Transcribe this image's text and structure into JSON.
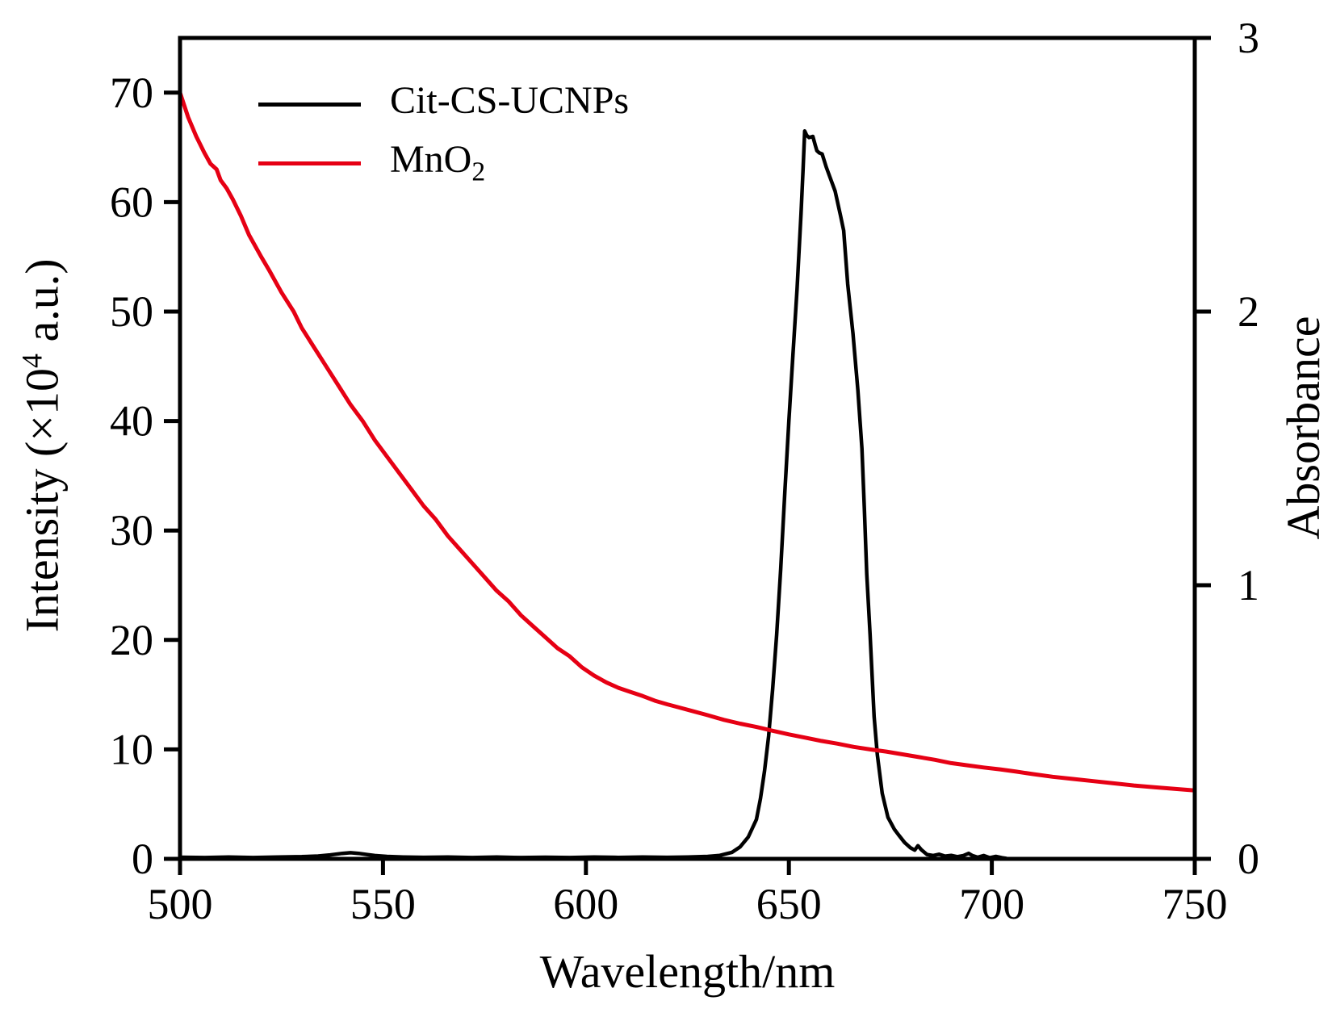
{
  "figure": {
    "background": "#ffffff"
  },
  "chart_data": {
    "type": "line",
    "title": "",
    "xlabel": "Wavelength/nm",
    "ylabel_left": "Intensity (×10⁴ a.u.)",
    "ylabel_right": "Absorbance",
    "xlim": [
      500,
      750
    ],
    "xticks": [
      500,
      550,
      600,
      650,
      700,
      750
    ],
    "ylim_left": [
      0,
      75
    ],
    "yticks_left": [
      0,
      10,
      20,
      30,
      40,
      50,
      60,
      70
    ],
    "ylim_right": [
      0,
      3
    ],
    "yticks_right": [
      0,
      1,
      2,
      3
    ],
    "grid": false,
    "legend_position": "upper-left-inside",
    "labels": {
      "ylabel_left_pre": "Intensity (×10",
      "ylabel_left_sup": "4",
      "ylabel_left_post": " a.u.)"
    },
    "legend": {
      "items": [
        {
          "label": "Cit-CS-UCNPs",
          "base": "Cit-CS-UCNPs",
          "sub": "",
          "color": "#000000"
        },
        {
          "label": "MnO2",
          "base": "MnO",
          "sub": "2",
          "color": "#e60014"
        }
      ]
    },
    "series": [
      {
        "id": "cit-cs-ucnps",
        "name": "Cit-CS-UCNPs",
        "axis": "left",
        "color": "#000000",
        "width": 4.5,
        "points": [
          [
            500,
            0.15
          ],
          [
            506,
            0.12
          ],
          [
            512,
            0.16
          ],
          [
            518,
            0.12
          ],
          [
            524,
            0.17
          ],
          [
            530,
            0.2
          ],
          [
            534,
            0.26
          ],
          [
            537,
            0.36
          ],
          [
            540,
            0.5
          ],
          [
            542,
            0.56
          ],
          [
            544,
            0.5
          ],
          [
            546,
            0.4
          ],
          [
            548,
            0.3
          ],
          [
            551,
            0.22
          ],
          [
            555,
            0.17
          ],
          [
            560,
            0.14
          ],
          [
            566,
            0.16
          ],
          [
            572,
            0.12
          ],
          [
            578,
            0.16
          ],
          [
            584,
            0.12
          ],
          [
            590,
            0.15
          ],
          [
            596,
            0.12
          ],
          [
            602,
            0.16
          ],
          [
            608,
            0.13
          ],
          [
            614,
            0.16
          ],
          [
            620,
            0.14
          ],
          [
            625,
            0.17
          ],
          [
            630,
            0.22
          ],
          [
            633,
            0.32
          ],
          [
            636,
            0.6
          ],
          [
            638,
            1.1
          ],
          [
            640,
            2.0
          ],
          [
            642,
            3.6
          ],
          [
            643,
            5.5
          ],
          [
            644,
            8.0
          ],
          [
            645,
            11.2
          ],
          [
            646,
            15.5
          ],
          [
            647,
            20.5
          ],
          [
            648,
            26.5
          ],
          [
            649,
            33.5
          ],
          [
            650,
            40.0
          ],
          [
            651,
            46.0
          ],
          [
            652,
            52.0
          ],
          [
            653,
            59.0
          ],
          [
            653.5,
            63.0
          ],
          [
            653.9,
            66.5
          ],
          [
            654.4,
            66.1
          ],
          [
            655.0,
            65.9
          ],
          [
            655.9,
            66.0
          ],
          [
            656.5,
            65.2
          ],
          [
            656.9,
            64.7
          ],
          [
            657.5,
            64.5
          ],
          [
            658.2,
            64.4
          ],
          [
            659.2,
            63.2
          ],
          [
            660,
            62.4
          ],
          [
            660.8,
            61.6
          ],
          [
            661.4,
            61.0
          ],
          [
            662,
            60.0
          ],
          [
            662.7,
            58.8
          ],
          [
            663.5,
            57.4
          ],
          [
            664.5,
            52.5
          ],
          [
            665.8,
            48.0
          ],
          [
            667,
            42.8
          ],
          [
            668,
            37.5
          ],
          [
            668.6,
            32.0
          ],
          [
            669.2,
            26.0
          ],
          [
            670,
            20.5
          ],
          [
            671,
            13.0
          ],
          [
            671.8,
            9.5
          ],
          [
            673,
            6.0
          ],
          [
            674.4,
            3.8
          ],
          [
            676,
            2.7
          ],
          [
            677,
            2.2
          ],
          [
            678.5,
            1.5
          ],
          [
            680,
            1.0
          ],
          [
            681,
            0.8
          ],
          [
            681.8,
            1.2
          ],
          [
            682.6,
            0.85
          ],
          [
            684,
            0.4
          ],
          [
            685.5,
            0.3
          ],
          [
            687,
            0.42
          ],
          [
            688.5,
            0.25
          ],
          [
            690,
            0.32
          ],
          [
            691.5,
            0.2
          ],
          [
            693,
            0.3
          ],
          [
            694.3,
            0.5
          ],
          [
            695.2,
            0.3
          ],
          [
            696.5,
            0.15
          ],
          [
            698,
            0.3
          ],
          [
            699.5,
            0.1
          ],
          [
            701,
            0.22
          ],
          [
            702.5,
            0.1
          ],
          [
            703.5,
            0.05
          ]
        ]
      },
      {
        "id": "mno2",
        "name": "MnO2",
        "axis": "right",
        "color": "#e60014",
        "width": 5,
        "points": [
          [
            500,
            2.8
          ],
          [
            502,
            2.71
          ],
          [
            504,
            2.64
          ],
          [
            506,
            2.58
          ],
          [
            507.5,
            2.54
          ],
          [
            509,
            2.52
          ],
          [
            510,
            2.48
          ],
          [
            511.5,
            2.45
          ],
          [
            513,
            2.41
          ],
          [
            515,
            2.35
          ],
          [
            517,
            2.28
          ],
          [
            520,
            2.2
          ],
          [
            522,
            2.15
          ],
          [
            525,
            2.07
          ],
          [
            528,
            2.0
          ],
          [
            530,
            1.94
          ],
          [
            533,
            1.87
          ],
          [
            536,
            1.8
          ],
          [
            539,
            1.73
          ],
          [
            542,
            1.66
          ],
          [
            545,
            1.6
          ],
          [
            548,
            1.53
          ],
          [
            551,
            1.47
          ],
          [
            554,
            1.41
          ],
          [
            557,
            1.35
          ],
          [
            560,
            1.29
          ],
          [
            563,
            1.24
          ],
          [
            566,
            1.18
          ],
          [
            569,
            1.13
          ],
          [
            572,
            1.08
          ],
          [
            575,
            1.03
          ],
          [
            578,
            0.98
          ],
          [
            581,
            0.94
          ],
          [
            584,
            0.89
          ],
          [
            587,
            0.85
          ],
          [
            590,
            0.81
          ],
          [
            593,
            0.77
          ],
          [
            596,
            0.74
          ],
          [
            599,
            0.7
          ],
          [
            602,
            0.67
          ],
          [
            605,
            0.645
          ],
          [
            608,
            0.625
          ],
          [
            611,
            0.61
          ],
          [
            614,
            0.595
          ],
          [
            617,
            0.578
          ],
          [
            620,
            0.565
          ],
          [
            623,
            0.553
          ],
          [
            626,
            0.541
          ],
          [
            630,
            0.525
          ],
          [
            634,
            0.508
          ],
          [
            638,
            0.494
          ],
          [
            642,
            0.482
          ],
          [
            646,
            0.468
          ],
          [
            650,
            0.455
          ],
          [
            654,
            0.443
          ],
          [
            658,
            0.431
          ],
          [
            662,
            0.421
          ],
          [
            666,
            0.409
          ],
          [
            670,
            0.4
          ],
          [
            674,
            0.392
          ],
          [
            678,
            0.382
          ],
          [
            682,
            0.372
          ],
          [
            686,
            0.362
          ],
          [
            690,
            0.35
          ],
          [
            694,
            0.342
          ],
          [
            698,
            0.334
          ],
          [
            702,
            0.327
          ],
          [
            706,
            0.319
          ],
          [
            710,
            0.31
          ],
          [
            715,
            0.3
          ],
          [
            720,
            0.292
          ],
          [
            725,
            0.284
          ],
          [
            730,
            0.276
          ],
          [
            735,
            0.268
          ],
          [
            740,
            0.262
          ],
          [
            745,
            0.256
          ],
          [
            750,
            0.25
          ]
        ]
      }
    ]
  }
}
